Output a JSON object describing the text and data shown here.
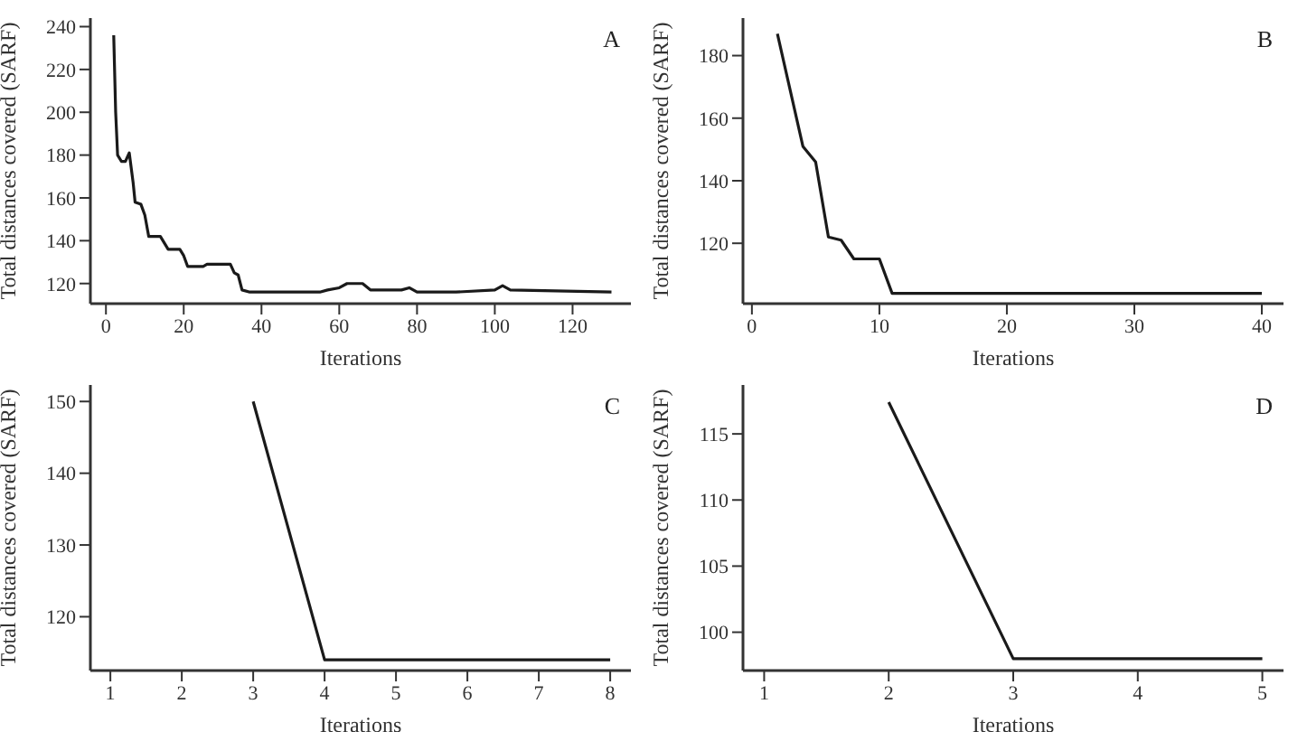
{
  "chart_data": [
    {
      "type": "line",
      "xlabel": "Iterations",
      "ylabel": "Total distances covered (SARF)",
      "annotations": [
        "A"
      ],
      "color": "#1a1a1a",
      "grid": false,
      "marker": "none",
      "xlim": [
        -4,
        135
      ],
      "ylim": [
        110.6,
        244
      ],
      "xticks": [
        0,
        20,
        40,
        60,
        80,
        100,
        120
      ],
      "yticks": [
        120,
        140,
        160,
        180,
        200,
        220,
        240
      ],
      "x": [
        2,
        2.5,
        3,
        4,
        5,
        6,
        7,
        7.5,
        9,
        10,
        11,
        14,
        16,
        19,
        20,
        21,
        25,
        26,
        32,
        33,
        34,
        35,
        37,
        40,
        55,
        57,
        60,
        62,
        66,
        68,
        76,
        78,
        80,
        90,
        100,
        102,
        104,
        130
      ],
      "values": [
        236,
        200,
        180,
        177,
        177,
        181,
        167,
        158,
        157,
        152,
        142,
        142,
        136,
        136,
        133,
        128,
        128,
        129,
        129,
        125,
        124,
        117,
        116,
        116,
        116,
        117,
        118,
        120,
        120,
        117,
        117,
        118,
        116,
        116,
        117,
        119,
        117,
        116
      ]
    },
    {
      "type": "line",
      "xlabel": "Iterations",
      "ylabel": "Total distances covered (SARF)",
      "annotations": [
        "B"
      ],
      "color": "#1a1a1a",
      "grid": false,
      "marker": "none",
      "xlim": [
        -0.7,
        41.7
      ],
      "ylim": [
        100.7,
        192
      ],
      "xticks": [
        0,
        10,
        20,
        30,
        40
      ],
      "yticks": [
        120,
        140,
        160,
        180
      ],
      "x": [
        2,
        4,
        5,
        6,
        7,
        8,
        10,
        11,
        40
      ],
      "values": [
        187,
        151,
        146,
        122,
        121,
        115,
        115,
        104,
        104
      ]
    },
    {
      "type": "line",
      "xlabel": "Iterations",
      "ylabel": "Total distances covered (SARF)",
      "annotations": [
        "C"
      ],
      "color": "#1a1a1a",
      "grid": false,
      "marker": "none",
      "xlim": [
        0.72,
        8.29
      ],
      "ylim": [
        112.5,
        152.3
      ],
      "xticks": [
        1,
        2,
        3,
        4,
        5,
        6,
        7,
        8
      ],
      "yticks": [
        120,
        130,
        140,
        150
      ],
      "x": [
        3,
        4,
        8
      ],
      "values": [
        150,
        114,
        114
      ]
    },
    {
      "type": "line",
      "xlabel": "Iterations",
      "ylabel": "Total distances covered (SARF)",
      "annotations": [
        "D"
      ],
      "color": "#1a1a1a",
      "grid": false,
      "marker": "none",
      "xlim": [
        0.83,
        5.17
      ],
      "ylim": [
        97.1,
        118.7
      ],
      "xticks": [
        1,
        2,
        3,
        4,
        5
      ],
      "yticks": [
        100,
        105,
        110,
        115
      ],
      "x": [
        2,
        3,
        5
      ],
      "values": [
        117.4,
        98,
        98
      ]
    }
  ]
}
